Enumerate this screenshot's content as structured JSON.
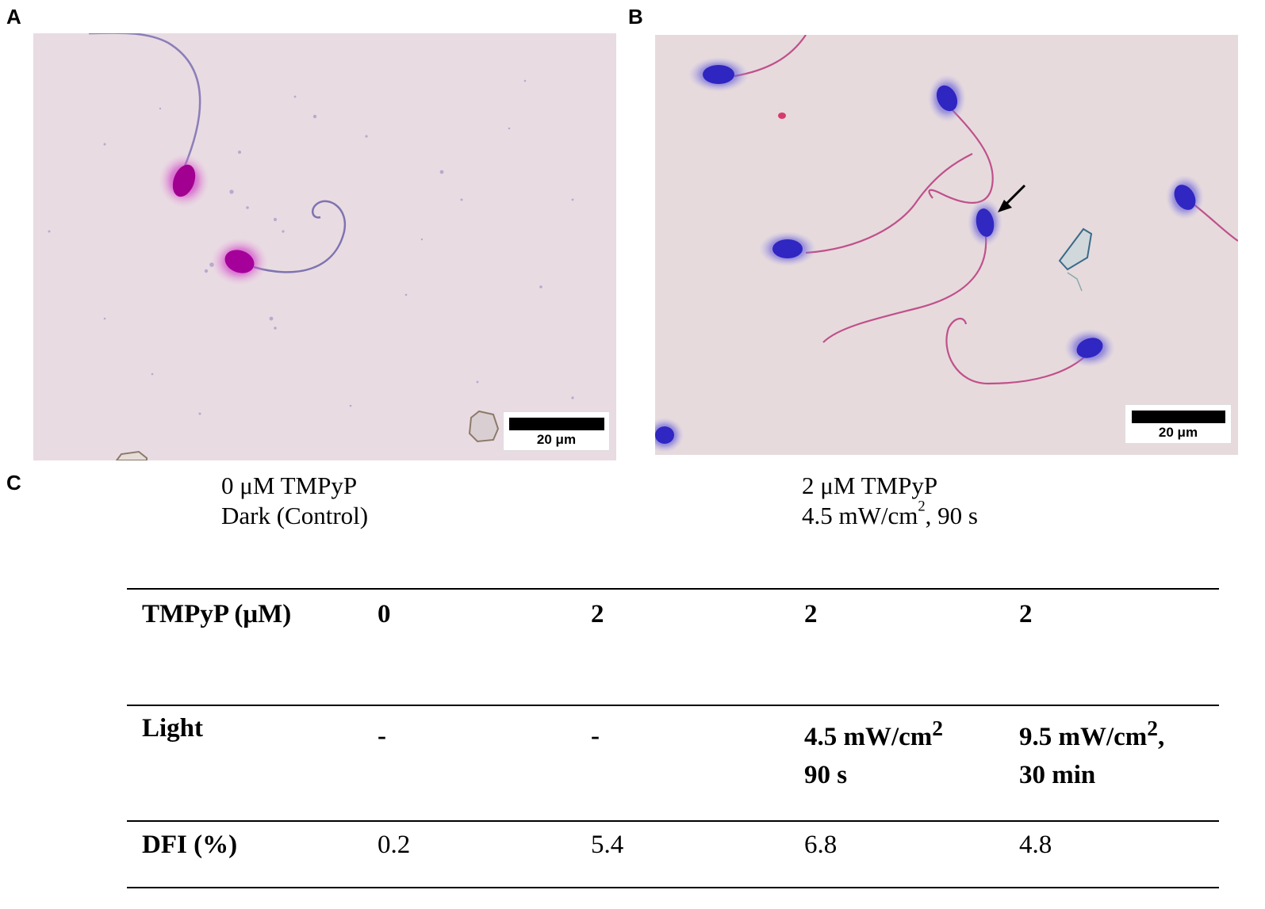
{
  "panels": {
    "a": {
      "letter": "A",
      "scale_label": "20 μm"
    },
    "b": {
      "letter": "B",
      "scale_label": "20 μm"
    },
    "c": {
      "letter": "C"
    }
  },
  "captions": {
    "a_line1": "0 μM TMPyP",
    "a_line2": "Dark (Control)",
    "b_line1": "2 μM TMPyP",
    "b_line2_main": "4.5 mW/cm",
    "b_line2_sup": "2",
    "b_line2_tail": ", 90 s"
  },
  "table": {
    "row1": {
      "label": "TMPyP (μM)",
      "c1": "0",
      "c2": "2",
      "c3": "2",
      "c4": "2"
    },
    "row2": {
      "label": "Light",
      "c1": "-",
      "c2": "-",
      "c3_main": "4.5 mW/cm",
      "c3_sup": "2",
      "c3_line2": "90 s",
      "c4_main": "9.5 mW/cm",
      "c4_sup": "2",
      "c4_tail": ",",
      "c4_line2": "30 min"
    },
    "row3": {
      "label": "DFI (%)",
      "c1": "0.2",
      "c2": "5.4",
      "c3": "6.8",
      "c4": "4.8"
    }
  }
}
